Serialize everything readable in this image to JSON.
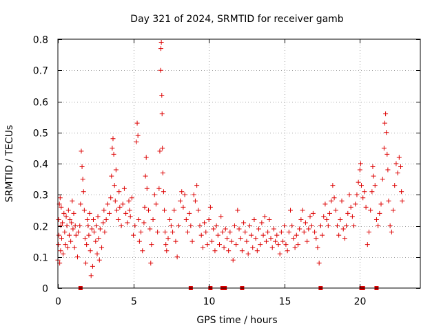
{
  "chart_data": {
    "type": "scatter",
    "title": "Day 321 of 2024, SRMTID for receiver gamb",
    "xlabel": "GPS time / hours",
    "ylabel": "SRMTID / TECUs",
    "xlim": [
      0,
      24
    ],
    "ylim": [
      0,
      0.8
    ],
    "grid": true,
    "marker": "+",
    "color": "#dd0000",
    "xticks": [
      {
        "value": 0,
        "label": "0"
      },
      {
        "value": 5,
        "label": "5"
      },
      {
        "value": 10,
        "label": "10"
      },
      {
        "value": 15,
        "label": "15"
      },
      {
        "value": 20,
        "label": "20"
      }
    ],
    "yticks": [
      {
        "value": 0,
        "label": "0"
      },
      {
        "value": 0.1,
        "label": "0.1"
      },
      {
        "value": 0.2,
        "label": "0.2"
      },
      {
        "value": 0.3,
        "label": "0.3"
      },
      {
        "value": 0.4,
        "label": "0.4"
      },
      {
        "value": 0.5,
        "label": "0.5"
      },
      {
        "value": 0.6,
        "label": "0.6"
      },
      {
        "value": 0.7,
        "label": "0.7"
      },
      {
        "value": 0.8,
        "label": "0.8"
      }
    ],
    "series": [
      {
        "name": "SRMTID",
        "points": [
          [
            0.0,
            0.09
          ],
          [
            0.03,
            0.14
          ],
          [
            0.05,
            0.22
          ],
          [
            0.07,
            0.17
          ],
          [
            0.1,
            0.27
          ],
          [
            0.12,
            0.08
          ],
          [
            0.15,
            0.29
          ],
          [
            0.18,
            0.12
          ],
          [
            0.2,
            0.2
          ],
          [
            0.22,
            0.26
          ],
          [
            0.25,
            0.16
          ],
          [
            0.3,
            0.21
          ],
          [
            0.35,
            0.11
          ],
          [
            0.4,
            0.24
          ],
          [
            0.45,
            0.18
          ],
          [
            0.5,
            0.14
          ],
          [
            0.55,
            0.23
          ],
          [
            0.6,
            0.2
          ],
          [
            0.65,
            0.13
          ],
          [
            0.7,
            0.25
          ],
          [
            0.75,
            0.17
          ],
          [
            0.8,
            0.22
          ],
          [
            0.85,
            0.15
          ],
          [
            0.9,
            0.21
          ],
          [
            0.95,
            0.28
          ],
          [
            1.0,
            0.19
          ],
          [
            1.05,
            0.24
          ],
          [
            1.1,
            0.13
          ],
          [
            1.15,
            0.2
          ],
          [
            1.2,
            0.17
          ],
          [
            1.3,
            0.1
          ],
          [
            1.35,
            0.18
          ],
          [
            1.45,
            0.2
          ],
          [
            1.5,
            0.27
          ],
          [
            1.55,
            0.44
          ],
          [
            1.6,
            0.39
          ],
          [
            1.65,
            0.35
          ],
          [
            1.7,
            0.31
          ],
          [
            1.75,
            0.25
          ],
          [
            1.8,
            0.16
          ],
          [
            1.85,
            0.08
          ],
          [
            1.9,
            0.14
          ],
          [
            1.95,
            0.22
          ],
          [
            2.0,
            0.2
          ],
          [
            2.05,
            0.17
          ],
          [
            2.1,
            0.24
          ],
          [
            2.15,
            0.12
          ],
          [
            2.2,
            0.04
          ],
          [
            2.25,
            0.19
          ],
          [
            2.3,
            0.07
          ],
          [
            2.35,
            0.22
          ],
          [
            2.4,
            0.18
          ],
          [
            2.5,
            0.15
          ],
          [
            2.55,
            0.2
          ],
          [
            2.6,
            0.11
          ],
          [
            2.65,
            0.23
          ],
          [
            2.7,
            0.16
          ],
          [
            2.75,
            0.09
          ],
          [
            2.8,
            0.19
          ],
          [
            2.9,
            0.13
          ],
          [
            3.0,
            0.21
          ],
          [
            3.05,
            0.25
          ],
          [
            3.1,
            0.18
          ],
          [
            3.2,
            0.22
          ],
          [
            3.3,
            0.27
          ],
          [
            3.4,
            0.24
          ],
          [
            3.5,
            0.29
          ],
          [
            3.55,
            0.36
          ],
          [
            3.6,
            0.45
          ],
          [
            3.65,
            0.48
          ],
          [
            3.7,
            0.43
          ],
          [
            3.75,
            0.33
          ],
          [
            3.8,
            0.28
          ],
          [
            3.85,
            0.38
          ],
          [
            3.9,
            0.25
          ],
          [
            4.0,
            0.22
          ],
          [
            4.05,
            0.31
          ],
          [
            4.1,
            0.26
          ],
          [
            4.2,
            0.2
          ],
          [
            4.3,
            0.27
          ],
          [
            4.4,
            0.32
          ],
          [
            4.5,
            0.24
          ],
          [
            4.6,
            0.21
          ],
          [
            4.7,
            0.28
          ],
          [
            4.75,
            0.25
          ],
          [
            4.8,
            0.23
          ],
          [
            4.9,
            0.29
          ],
          [
            5.0,
            0.17
          ],
          [
            5.1,
            0.2
          ],
          [
            5.2,
            0.47
          ],
          [
            5.25,
            0.53
          ],
          [
            5.3,
            0.49
          ],
          [
            5.35,
            0.22
          ],
          [
            5.4,
            0.15
          ],
          [
            5.5,
            0.18
          ],
          [
            5.6,
            0.12
          ],
          [
            5.7,
            0.21
          ],
          [
            5.75,
            0.26
          ],
          [
            5.8,
            0.36
          ],
          [
            5.85,
            0.42
          ],
          [
            5.9,
            0.32
          ],
          [
            6.0,
            0.25
          ],
          [
            6.1,
            0.19
          ],
          [
            6.15,
            0.08
          ],
          [
            6.2,
            0.14
          ],
          [
            6.3,
            0.22
          ],
          [
            6.4,
            0.3
          ],
          [
            6.5,
            0.27
          ],
          [
            6.6,
            0.18
          ],
          [
            6.7,
            0.32
          ],
          [
            6.75,
            0.44
          ],
          [
            6.8,
            0.7
          ],
          [
            6.82,
            0.77
          ],
          [
            6.85,
            0.79
          ],
          [
            6.88,
            0.62
          ],
          [
            6.9,
            0.56
          ],
          [
            6.92,
            0.45
          ],
          [
            6.95,
            0.37
          ],
          [
            7.0,
            0.31
          ],
          [
            7.05,
            0.25
          ],
          [
            7.1,
            0.18
          ],
          [
            7.15,
            0.14
          ],
          [
            7.2,
            0.12
          ],
          [
            7.3,
            0.16
          ],
          [
            7.4,
            0.22
          ],
          [
            7.5,
            0.2
          ],
          [
            7.6,
            0.18
          ],
          [
            7.7,
            0.25
          ],
          [
            7.8,
            0.15
          ],
          [
            7.9,
            0.1
          ],
          [
            8.0,
            0.2
          ],
          [
            8.1,
            0.28
          ],
          [
            8.2,
            0.31
          ],
          [
            8.3,
            0.26
          ],
          [
            8.4,
            0.3
          ],
          [
            8.5,
            0.22
          ],
          [
            8.6,
            0.18
          ],
          [
            8.7,
            0.24
          ],
          [
            8.8,
            0.2
          ],
          [
            8.9,
            0.15
          ],
          [
            9.0,
            0.3
          ],
          [
            9.1,
            0.28
          ],
          [
            9.2,
            0.33
          ],
          [
            9.3,
            0.25
          ],
          [
            9.4,
            0.2
          ],
          [
            9.5,
            0.17
          ],
          [
            9.6,
            0.13
          ],
          [
            9.7,
            0.21
          ],
          [
            9.8,
            0.18
          ],
          [
            9.9,
            0.14
          ],
          [
            10.0,
            0.22
          ],
          [
            10.1,
            0.26
          ],
          [
            10.2,
            0.15
          ],
          [
            10.3,
            0.19
          ],
          [
            10.4,
            0.12
          ],
          [
            10.5,
            0.2
          ],
          [
            10.6,
            0.17
          ],
          [
            10.7,
            0.14
          ],
          [
            10.8,
            0.23
          ],
          [
            10.9,
            0.18
          ],
          [
            11.0,
            0.13
          ],
          [
            11.1,
            0.19
          ],
          [
            11.2,
            0.16
          ],
          [
            11.3,
            0.12
          ],
          [
            11.4,
            0.18
          ],
          [
            11.5,
            0.15
          ],
          [
            11.6,
            0.09
          ],
          [
            11.7,
            0.2
          ],
          [
            11.8,
            0.14
          ],
          [
            11.9,
            0.25
          ],
          [
            12.0,
            0.19
          ],
          [
            12.1,
            0.16
          ],
          [
            12.2,
            0.12
          ],
          [
            12.3,
            0.21
          ],
          [
            12.4,
            0.18
          ],
          [
            12.5,
            0.15
          ],
          [
            12.6,
            0.11
          ],
          [
            12.7,
            0.2
          ],
          [
            12.8,
            0.17
          ],
          [
            12.9,
            0.13
          ],
          [
            13.0,
            0.22
          ],
          [
            13.1,
            0.16
          ],
          [
            13.2,
            0.12
          ],
          [
            13.3,
            0.19
          ],
          [
            13.4,
            0.14
          ],
          [
            13.5,
            0.21
          ],
          [
            13.6,
            0.17
          ],
          [
            13.7,
            0.23
          ],
          [
            13.8,
            0.15
          ],
          [
            13.9,
            0.18
          ],
          [
            14.0,
            0.22
          ],
          [
            14.1,
            0.16
          ],
          [
            14.2,
            0.13
          ],
          [
            14.3,
            0.19
          ],
          [
            14.4,
            0.15
          ],
          [
            14.5,
            0.17
          ],
          [
            14.6,
            0.14
          ],
          [
            14.7,
            0.11
          ],
          [
            14.8,
            0.18
          ],
          [
            14.9,
            0.15
          ],
          [
            15.0,
            0.2
          ],
          [
            15.1,
            0.14
          ],
          [
            15.2,
            0.12
          ],
          [
            15.3,
            0.18
          ],
          [
            15.4,
            0.25
          ],
          [
            15.5,
            0.2
          ],
          [
            15.6,
            0.16
          ],
          [
            15.7,
            0.13
          ],
          [
            15.8,
            0.17
          ],
          [
            15.9,
            0.14
          ],
          [
            16.0,
            0.19
          ],
          [
            16.1,
            0.22
          ],
          [
            16.2,
            0.25
          ],
          [
            16.3,
            0.18
          ],
          [
            16.4,
            0.21
          ],
          [
            16.5,
            0.15
          ],
          [
            16.6,
            0.19
          ],
          [
            16.7,
            0.23
          ],
          [
            16.8,
            0.2
          ],
          [
            16.9,
            0.24
          ],
          [
            17.0,
            0.18
          ],
          [
            17.1,
            0.16
          ],
          [
            17.2,
            0.13
          ],
          [
            17.3,
            0.08
          ],
          [
            17.4,
            0.2
          ],
          [
            17.5,
            0.17
          ],
          [
            17.6,
            0.23
          ],
          [
            17.7,
            0.27
          ],
          [
            17.8,
            0.22
          ],
          [
            17.9,
            0.2
          ],
          [
            18.0,
            0.24
          ],
          [
            18.1,
            0.28
          ],
          [
            18.2,
            0.33
          ],
          [
            18.3,
            0.29
          ],
          [
            18.4,
            0.25
          ],
          [
            18.5,
            0.2
          ],
          [
            18.6,
            0.17
          ],
          [
            18.7,
            0.22
          ],
          [
            18.8,
            0.28
          ],
          [
            18.9,
            0.19
          ],
          [
            19.0,
            0.16
          ],
          [
            19.1,
            0.2
          ],
          [
            19.2,
            0.24
          ],
          [
            19.3,
            0.3
          ],
          [
            19.4,
            0.26
          ],
          [
            19.5,
            0.23
          ],
          [
            19.6,
            0.2
          ],
          [
            19.7,
            0.27
          ],
          [
            19.8,
            0.3
          ],
          [
            19.9,
            0.34
          ],
          [
            20.0,
            0.38
          ],
          [
            20.05,
            0.4
          ],
          [
            20.1,
            0.33
          ],
          [
            20.2,
            0.29
          ],
          [
            20.3,
            0.31
          ],
          [
            20.4,
            0.26
          ],
          [
            20.5,
            0.14
          ],
          [
            20.6,
            0.18
          ],
          [
            20.7,
            0.25
          ],
          [
            20.8,
            0.31
          ],
          [
            20.85,
            0.39
          ],
          [
            20.9,
            0.36
          ],
          [
            21.0,
            0.33
          ],
          [
            21.1,
            0.22
          ],
          [
            21.2,
            0.2
          ],
          [
            21.3,
            0.24
          ],
          [
            21.4,
            0.27
          ],
          [
            21.5,
            0.35
          ],
          [
            21.6,
            0.45
          ],
          [
            21.65,
            0.53
          ],
          [
            21.7,
            0.56
          ],
          [
            21.75,
            0.5
          ],
          [
            21.8,
            0.43
          ],
          [
            21.85,
            0.38
          ],
          [
            21.9,
            0.28
          ],
          [
            22.0,
            0.2
          ],
          [
            22.1,
            0.18
          ],
          [
            22.2,
            0.25
          ],
          [
            22.3,
            0.33
          ],
          [
            22.4,
            0.4
          ],
          [
            22.5,
            0.37
          ],
          [
            22.6,
            0.42
          ],
          [
            22.7,
            0.39
          ],
          [
            22.75,
            0.31
          ],
          [
            22.8,
            0.28
          ]
        ],
        "zero_points": [
          1.5,
          8.8,
          10.1,
          10.9,
          11.05,
          12.2,
          17.4,
          20.1,
          20.2,
          21.1
        ]
      }
    ]
  }
}
